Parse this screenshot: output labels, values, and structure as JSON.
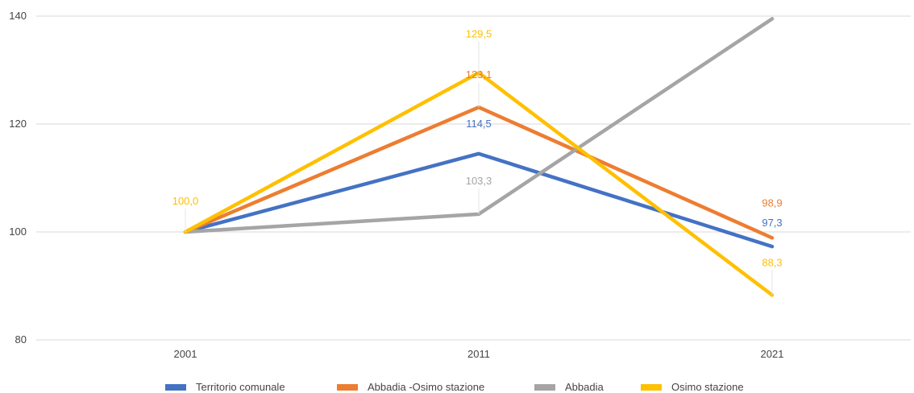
{
  "chart_data": {
    "type": "line",
    "categories": [
      "2001",
      "2011",
      "2021"
    ],
    "ylim": [
      80,
      140
    ],
    "yticks": [
      "80",
      "100",
      "120",
      "140"
    ],
    "grid": true,
    "legend_position": "bottom",
    "series": [
      {
        "name": "Territorio comunale",
        "color": "#4472C4",
        "values": [
          100.0,
          114.5,
          97.3
        ],
        "labels": [
          "",
          "114,5",
          "97,3"
        ]
      },
      {
        "name": "Abbadia -Osimo stazione",
        "color": "#ED7D31",
        "values": [
          100.0,
          123.1,
          98.9
        ],
        "labels": [
          "",
          "123,1",
          "98,9"
        ]
      },
      {
        "name": "Abbadia",
        "color": "#A5A5A5",
        "values": [
          100.0,
          103.3,
          139.5
        ],
        "labels": [
          "",
          "103,3",
          ""
        ]
      },
      {
        "name": "Osimo stazione",
        "color": "#FFC000",
        "values": [
          100.0,
          129.5,
          88.3
        ],
        "labels": [
          "100,0",
          "129,5",
          "88,3"
        ]
      }
    ]
  }
}
